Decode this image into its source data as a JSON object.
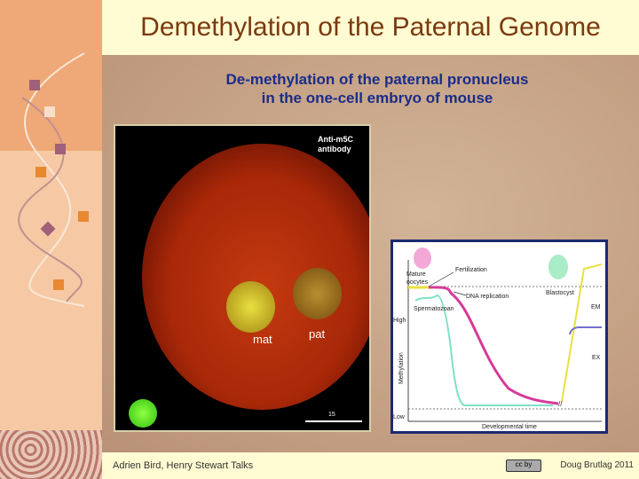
{
  "title": "Demethylation of the Paternal Genome",
  "subtitle_line1": "De-methylation of the paternal pronucleus",
  "subtitle_line2": "in the one-cell embryo of mouse",
  "micrograph": {
    "antibody_line1": "Anti-m5C",
    "antibody_line2": "antibody",
    "mat_label": "mat",
    "pat_label": "pat",
    "scale_label": "15"
  },
  "chart": {
    "labels": {
      "mature": "Mature",
      "oocytes": "oocytes",
      "fertilization": "Fertilization",
      "dna_replication": "DNA replication",
      "spermatozoan": "Spermatozoan",
      "blastocyst": "Blastocyst",
      "em": "EM",
      "ex": "EX",
      "high": "High",
      "low": "Low",
      "ylabel": "Methylation",
      "xlabel": "Developmental time"
    },
    "colors": {
      "maternal": "#d63a9a",
      "paternal": "#7fe0c8",
      "em": "#e8e040",
      "ex": "#7070d0"
    }
  },
  "footer": {
    "left": "Adrien Bird, Henry Stewart Talks",
    "right": "Doug Brutlag 2011",
    "license": "cc by"
  }
}
